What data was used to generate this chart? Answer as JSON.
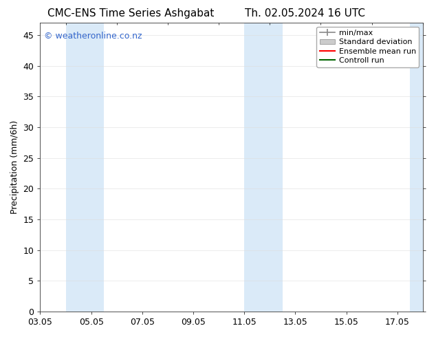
{
  "title_left": "CMC-ENS Time Series Ashgabat",
  "title_right": "Th. 02.05.2024 16 UTC",
  "ylabel": "Precipitation (mm/6h)",
  "watermark": "© weatheronline.co.nz",
  "xtick_labels": [
    "03.05",
    "05.05",
    "07.05",
    "09.05",
    "11.05",
    "13.05",
    "15.05",
    "17.05"
  ],
  "xtick_positions": [
    3,
    5,
    7,
    9,
    11,
    13,
    15,
    17
  ],
  "xlim": [
    3,
    18.0
  ],
  "ylim": [
    0,
    47
  ],
  "ytick_positions": [
    0,
    5,
    10,
    15,
    20,
    25,
    30,
    35,
    40,
    45
  ],
  "ytick_labels": [
    "0",
    "5",
    "10",
    "15",
    "20",
    "25",
    "30",
    "35",
    "40",
    "45"
  ],
  "shaded_bands": [
    {
      "x_start": 4.0,
      "x_end": 5.5
    },
    {
      "x_start": 11.0,
      "x_end": 12.5
    },
    {
      "x_start": 17.5,
      "x_end": 18.0
    }
  ],
  "shade_color": "#daeaf8",
  "legend_entries": [
    {
      "label": "min/max",
      "color": "#999999",
      "style": "errorbar"
    },
    {
      "label": "Standard deviation",
      "color": "#cccccc",
      "style": "fill"
    },
    {
      "label": "Ensemble mean run",
      "color": "red",
      "style": "line"
    },
    {
      "label": "Controll run",
      "color": "green",
      "style": "line"
    }
  ],
  "background_color": "#ffffff",
  "plot_bg_color": "#ffffff",
  "border_color": "#333333",
  "grid_color": "#dddddd",
  "font_size_title": 11,
  "font_size_axis": 9,
  "font_size_legend": 8,
  "font_size_watermark": 9,
  "watermark_color": "#3366cc"
}
